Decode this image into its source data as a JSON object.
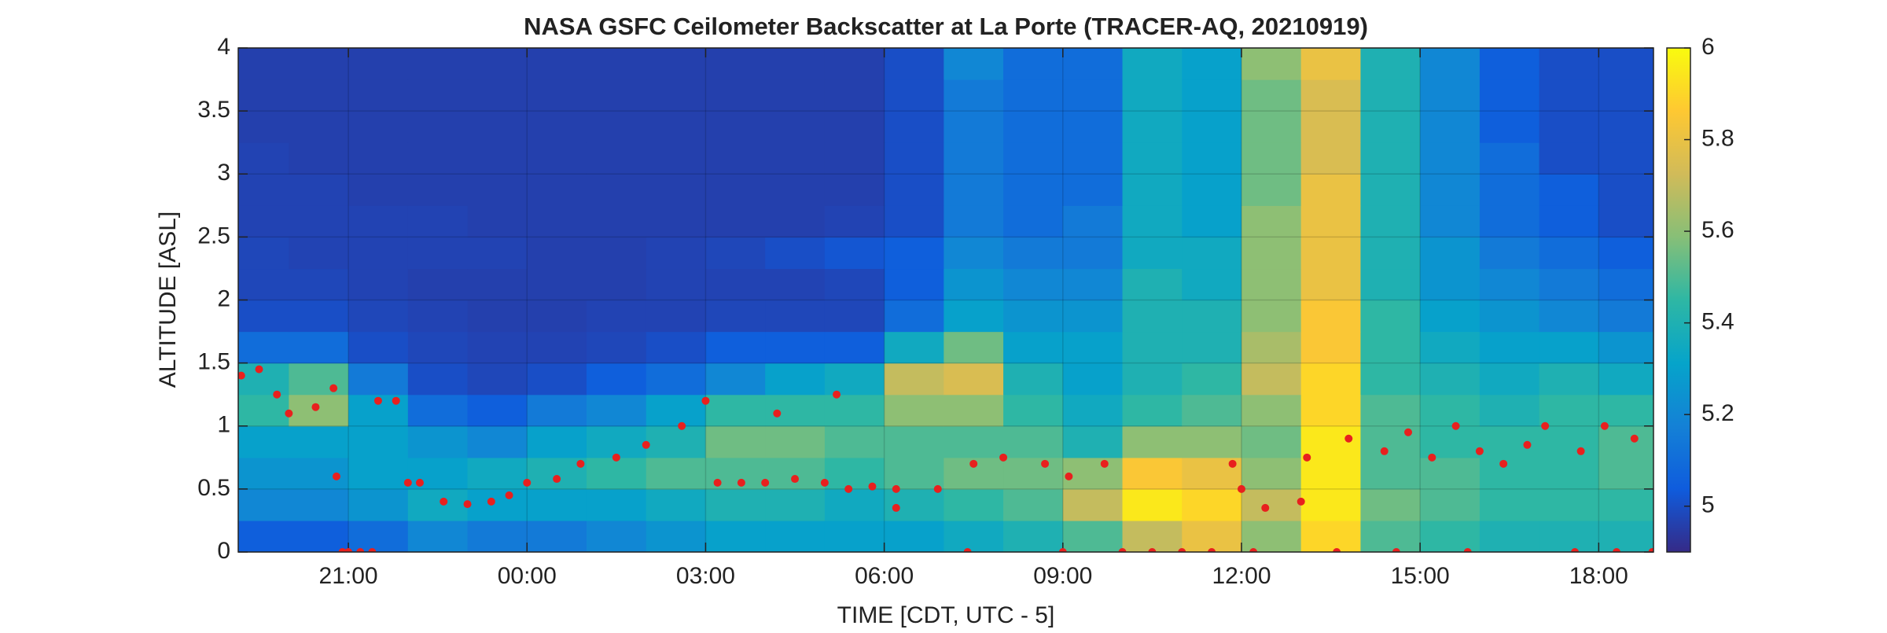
{
  "chart_data": {
    "type": "heatmap",
    "title": "NASA GSFC Ceilometer Backscatter at La Porte (TRACER-AQ, 20210919)",
    "xlabel": "TIME [CDT, UTC - 5]",
    "ylabel": "ALTITUDE [ASL]",
    "xlim": [
      19.15,
      42.92
    ],
    "ylim": [
      0,
      4
    ],
    "xticks": [
      {
        "value": 21,
        "label": "21:00"
      },
      {
        "value": 24,
        "label": "00:00"
      },
      {
        "value": 27,
        "label": "03:00"
      },
      {
        "value": 30,
        "label": "06:00"
      },
      {
        "value": 33,
        "label": "09:00"
      },
      {
        "value": 36,
        "label": "12:00"
      },
      {
        "value": 39,
        "label": "15:00"
      },
      {
        "value": 42,
        "label": "18:00"
      }
    ],
    "yticks": [
      0,
      0.5,
      1,
      1.5,
      2,
      2.5,
      3,
      3.5,
      4
    ],
    "grid": true,
    "x": [
      19.5,
      20.5,
      21.5,
      22.5,
      23.5,
      24.5,
      25.5,
      26.5,
      27.5,
      28.5,
      29.5,
      30.5,
      31.5,
      32.5,
      33.5,
      34.5,
      35.5,
      36.5,
      37.5,
      38.5,
      39.5,
      40.5,
      41.5,
      42.5
    ],
    "y": [
      0.125,
      0.375,
      0.625,
      0.875,
      1.125,
      1.375,
      1.625,
      1.875,
      2.125,
      2.375,
      2.625,
      2.875,
      3.125,
      3.375,
      3.625,
      3.875
    ],
    "z": [
      [
        5.05,
        5.05,
        5.1,
        5.2,
        5.15,
        5.15,
        5.2,
        5.25,
        5.3,
        5.3,
        5.3,
        5.3,
        5.35,
        5.4,
        5.5,
        5.7,
        5.8,
        5.6,
        5.9,
        5.5,
        5.45,
        5.4,
        5.4,
        5.4
      ],
      [
        5.2,
        5.2,
        5.25,
        5.35,
        5.3,
        5.3,
        5.3,
        5.35,
        5.4,
        5.4,
        5.35,
        5.4,
        5.45,
        5.5,
        5.7,
        5.95,
        5.9,
        5.7,
        5.95,
        5.55,
        5.5,
        5.45,
        5.45,
        5.45
      ],
      [
        5.25,
        5.25,
        5.3,
        5.3,
        5.35,
        5.4,
        5.45,
        5.5,
        5.5,
        5.5,
        5.45,
        5.5,
        5.55,
        5.55,
        5.6,
        5.85,
        5.8,
        5.6,
        5.95,
        5.5,
        5.5,
        5.45,
        5.45,
        5.5
      ],
      [
        5.3,
        5.3,
        5.3,
        5.25,
        5.2,
        5.3,
        5.35,
        5.4,
        5.55,
        5.55,
        5.5,
        5.5,
        5.5,
        5.5,
        5.4,
        5.6,
        5.6,
        5.55,
        5.95,
        5.5,
        5.45,
        5.45,
        5.45,
        5.5
      ],
      [
        5.45,
        5.6,
        5.3,
        5.1,
        5.05,
        5.15,
        5.2,
        5.3,
        5.45,
        5.45,
        5.45,
        5.6,
        5.6,
        5.45,
        5.35,
        5.45,
        5.5,
        5.6,
        5.9,
        5.5,
        5.45,
        5.4,
        5.45,
        5.45
      ],
      [
        5.4,
        5.5,
        5.15,
        5.0,
        4.98,
        5.0,
        5.05,
        5.1,
        5.2,
        5.3,
        5.35,
        5.7,
        5.75,
        5.4,
        5.3,
        5.4,
        5.45,
        5.7,
        5.9,
        5.45,
        5.4,
        5.35,
        5.4,
        5.35
      ],
      [
        5.1,
        5.1,
        5.0,
        4.98,
        4.97,
        4.97,
        4.98,
        5.0,
        5.05,
        5.05,
        5.05,
        5.35,
        5.55,
        5.3,
        5.3,
        5.4,
        5.4,
        5.65,
        5.85,
        5.45,
        5.35,
        5.3,
        5.3,
        5.25
      ],
      [
        5.0,
        5.0,
        4.98,
        4.97,
        4.96,
        4.96,
        4.97,
        4.97,
        4.98,
        4.98,
        4.98,
        5.1,
        5.3,
        5.25,
        5.25,
        5.4,
        5.4,
        5.6,
        5.85,
        5.45,
        5.3,
        5.25,
        5.2,
        5.15
      ],
      [
        4.98,
        4.98,
        4.97,
        4.96,
        4.96,
        4.96,
        4.96,
        4.97,
        4.97,
        4.97,
        4.98,
        5.05,
        5.25,
        5.2,
        5.2,
        5.4,
        5.35,
        5.6,
        5.8,
        5.4,
        5.25,
        5.2,
        5.15,
        5.1
      ],
      [
        4.98,
        4.97,
        4.97,
        4.97,
        4.97,
        4.96,
        4.96,
        4.97,
        4.98,
        5.0,
        5.02,
        5.05,
        5.2,
        5.15,
        5.15,
        5.35,
        5.35,
        5.6,
        5.8,
        5.4,
        5.25,
        5.15,
        5.1,
        5.05
      ],
      [
        4.97,
        4.97,
        4.97,
        4.97,
        4.96,
        4.96,
        4.96,
        4.96,
        4.96,
        4.96,
        4.97,
        5.0,
        5.15,
        5.1,
        5.15,
        5.35,
        5.3,
        5.6,
        5.8,
        5.4,
        5.2,
        5.1,
        5.05,
        5.0
      ],
      [
        4.97,
        4.97,
        4.96,
        4.96,
        4.96,
        4.96,
        4.96,
        4.96,
        4.96,
        4.96,
        4.96,
        5.0,
        5.15,
        5.1,
        5.1,
        5.35,
        5.3,
        5.55,
        5.8,
        5.4,
        5.2,
        5.1,
        5.05,
        5.0
      ],
      [
        4.97,
        4.96,
        4.96,
        4.96,
        4.96,
        4.96,
        4.96,
        4.96,
        4.96,
        4.96,
        4.96,
        5.0,
        5.15,
        5.1,
        5.1,
        5.35,
        5.3,
        5.55,
        5.75,
        5.4,
        5.2,
        5.1,
        5.0,
        5.0
      ],
      [
        4.96,
        4.96,
        4.96,
        4.96,
        4.96,
        4.96,
        4.96,
        4.96,
        4.96,
        4.96,
        4.96,
        5.0,
        5.15,
        5.1,
        5.1,
        5.35,
        5.3,
        5.55,
        5.75,
        5.4,
        5.2,
        5.05,
        5.0,
        5.0
      ],
      [
        4.96,
        4.96,
        4.96,
        4.96,
        4.96,
        4.96,
        4.96,
        4.96,
        4.96,
        4.96,
        4.96,
        5.0,
        5.15,
        5.1,
        5.1,
        5.35,
        5.3,
        5.55,
        5.75,
        5.4,
        5.2,
        5.05,
        5.0,
        5.0
      ],
      [
        4.96,
        4.96,
        4.96,
        4.96,
        4.96,
        4.96,
        4.96,
        4.96,
        4.96,
        4.96,
        4.96,
        5.0,
        5.2,
        5.1,
        5.1,
        5.35,
        5.3,
        5.6,
        5.8,
        5.4,
        5.2,
        5.05,
        5.0,
        5.0
      ]
    ],
    "colormap": [
      "#352a87",
      "#0f5cdd",
      "#1481d6",
      "#06a4ca",
      "#2eb7a4",
      "#87bf77",
      "#d1bb59",
      "#fec832",
      "#f9fb0e"
    ],
    "colorbar": {
      "lim": [
        4.9,
        6
      ],
      "ticks": [
        5,
        5.2,
        5.4,
        5.6,
        5.8,
        6
      ]
    },
    "markers": {
      "color": "#e8201e",
      "x": [
        19.2,
        19.5,
        19.8,
        20.0,
        20.45,
        20.75,
        20.8,
        21.5,
        21.8,
        22.0,
        22.2,
        22.6,
        23.0,
        23.4,
        23.7,
        24.0,
        24.5,
        24.9,
        25.5,
        26.0,
        26.6,
        27.0,
        27.2,
        27.6,
        28.0,
        28.5,
        29.0,
        29.4,
        29.8,
        30.2,
        30.2,
        30.9,
        31.5,
        32.0,
        32.7,
        33.1,
        33.7,
        28.2,
        29.2,
        35.85,
        36.0,
        36.4,
        37.0,
        37.1,
        37.8,
        38.4,
        38.8,
        39.2,
        39.6,
        40.0,
        40.4,
        40.8,
        41.1,
        41.7,
        42.1,
        42.6,
        20.9,
        21.0,
        21.2,
        21.4,
        31.4,
        33.0,
        34.0,
        34.5,
        35.0,
        35.5,
        36.2,
        37.6,
        38.6,
        39.8,
        41.6,
        42.3,
        42.9
      ],
      "y": [
        1.4,
        1.45,
        1.25,
        1.1,
        1.15,
        1.3,
        0.6,
        1.2,
        1.2,
        0.55,
        0.55,
        0.4,
        0.38,
        0.4,
        0.45,
        0.55,
        0.58,
        0.7,
        0.75,
        0.85,
        1.0,
        1.2,
        0.55,
        0.55,
        0.55,
        0.58,
        0.55,
        0.5,
        0.52,
        0.5,
        0.35,
        0.5,
        0.7,
        0.75,
        0.7,
        0.6,
        0.7,
        1.1,
        1.25,
        0.7,
        0.5,
        0.35,
        0.4,
        0.75,
        0.9,
        0.8,
        0.95,
        0.75,
        1.0,
        0.8,
        0.7,
        0.85,
        1.0,
        0.8,
        1.0,
        0.9,
        0,
        0,
        0,
        0,
        0,
        0,
        0,
        0,
        0,
        0,
        0,
        0,
        0,
        0,
        0,
        0,
        0
      ]
    }
  }
}
